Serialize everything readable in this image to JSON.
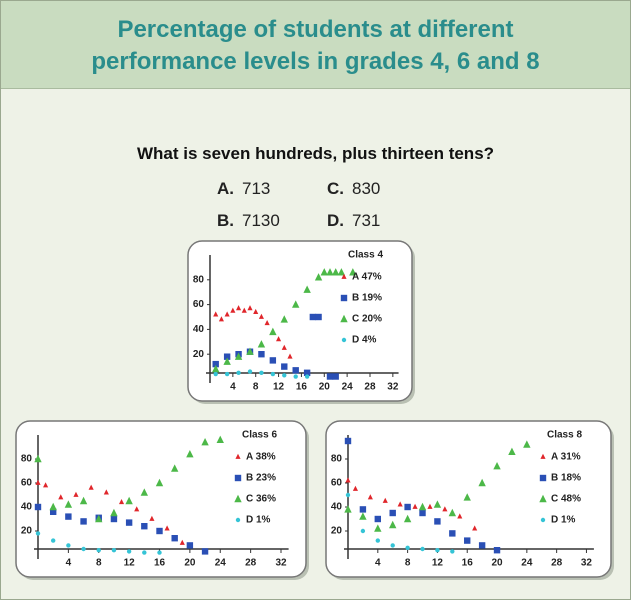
{
  "header": {
    "title_line1": "Percentage of students at different",
    "title_line2": "performance levels in grades 4, 6 and 8"
  },
  "question": "What is seven hundreds, plus thirteen tens?",
  "options": [
    {
      "letter": "A.",
      "text": "713"
    },
    {
      "letter": "C.",
      "text": "830"
    },
    {
      "letter": "B.",
      "text": "7130"
    },
    {
      "letter": "D.",
      "text": "731"
    }
  ],
  "chart_data": [
    {
      "type": "scatter",
      "title": "Class 4",
      "xlim": [
        0,
        33
      ],
      "ylim": [
        0,
        100
      ],
      "xticks": [
        4,
        8,
        12,
        16,
        20,
        24,
        28,
        32
      ],
      "yticks": [
        20,
        40,
        60,
        80
      ],
      "series": [
        {
          "name": "A 47%",
          "color": "#e0262b",
          "marker": "diamond",
          "x": [
            1,
            2,
            3,
            4,
            5,
            6,
            7,
            8,
            9,
            10,
            11,
            12,
            13,
            14
          ],
          "values": [
            52,
            48,
            52,
            55,
            57,
            55,
            57,
            54,
            50,
            45,
            38,
            32,
            25,
            18
          ]
        },
        {
          "name": "B 19%",
          "color": "#2a4fb5",
          "marker": "square",
          "x": [
            1,
            3,
            5,
            7,
            9,
            11,
            13,
            15,
            17,
            18,
            19,
            21,
            22
          ],
          "values": [
            12,
            18,
            20,
            22,
            20,
            15,
            10,
            7,
            5,
            50,
            50,
            2,
            2
          ]
        },
        {
          "name": "C 20%",
          "color": "#4cb848",
          "marker": "triangle",
          "x": [
            1,
            3,
            5,
            7,
            9,
            11,
            13,
            15,
            17,
            19,
            20,
            21,
            22,
            23,
            25
          ],
          "values": [
            8,
            14,
            18,
            22,
            28,
            38,
            48,
            60,
            72,
            82,
            86,
            86,
            86,
            86,
            86
          ]
        },
        {
          "name": "D  4%",
          "color": "#35c4d6",
          "marker": "circle",
          "x": [
            1,
            3,
            5,
            7,
            9,
            11,
            13,
            15,
            17
          ],
          "values": [
            4,
            4,
            5,
            6,
            5,
            4,
            3,
            2,
            2
          ]
        }
      ]
    },
    {
      "type": "scatter",
      "title": "Class 6",
      "xlim": [
        0,
        33
      ],
      "ylim": [
        0,
        100
      ],
      "xticks": [
        4,
        8,
        12,
        16,
        20,
        24,
        28,
        32
      ],
      "yticks": [
        20,
        40,
        60,
        80
      ],
      "series": [
        {
          "name": "A  38%",
          "color": "#e0262b",
          "marker": "diamond",
          "x": [
            0,
            1,
            3,
            5,
            7,
            9,
            11,
            13,
            15,
            17,
            19
          ],
          "values": [
            60,
            58,
            48,
            50,
            56,
            52,
            44,
            38,
            30,
            22,
            10
          ]
        },
        {
          "name": "B  23%",
          "color": "#2a4fb5",
          "marker": "square",
          "x": [
            0,
            2,
            4,
            6,
            8,
            10,
            12,
            14,
            16,
            18,
            20,
            22
          ],
          "values": [
            40,
            36,
            32,
            28,
            31,
            30,
            27,
            24,
            20,
            14,
            8,
            3
          ]
        },
        {
          "name": "C  36%",
          "color": "#4cb848",
          "marker": "triangle",
          "x": [
            0,
            2,
            4,
            6,
            8,
            10,
            12,
            14,
            16,
            18,
            20,
            22,
            24
          ],
          "values": [
            80,
            40,
            42,
            45,
            30,
            35,
            45,
            52,
            60,
            72,
            84,
            94,
            96
          ]
        },
        {
          "name": "D   1%",
          "color": "#35c4d6",
          "marker": "circle",
          "x": [
            0,
            2,
            4,
            6,
            8,
            10,
            12,
            14,
            16
          ],
          "values": [
            18,
            12,
            8,
            5,
            4,
            4,
            3,
            2,
            2
          ]
        }
      ]
    },
    {
      "type": "scatter",
      "title": "Class 8",
      "xlim": [
        0,
        33
      ],
      "ylim": [
        0,
        100
      ],
      "xticks": [
        4,
        8,
        12,
        16,
        20,
        24,
        28,
        32
      ],
      "yticks": [
        20,
        40,
        60,
        80
      ],
      "series": [
        {
          "name": "A  31%",
          "color": "#e0262b",
          "marker": "diamond",
          "x": [
            0,
            1,
            3,
            5,
            7,
            9,
            11,
            13,
            15,
            17
          ],
          "values": [
            62,
            55,
            48,
            45,
            42,
            40,
            40,
            38,
            32,
            22
          ]
        },
        {
          "name": "B  18%",
          "color": "#2a4fb5",
          "marker": "square",
          "x": [
            0,
            2,
            4,
            6,
            8,
            10,
            12,
            14,
            16,
            18,
            20
          ],
          "values": [
            95,
            38,
            30,
            35,
            40,
            35,
            28,
            18,
            12,
            8,
            4
          ]
        },
        {
          "name": "C  48%",
          "color": "#4cb848",
          "marker": "triangle",
          "x": [
            0,
            2,
            4,
            6,
            8,
            10,
            12,
            14,
            16,
            18,
            20,
            22,
            24
          ],
          "values": [
            38,
            32,
            22,
            25,
            30,
            40,
            42,
            35,
            48,
            60,
            74,
            86,
            92
          ]
        },
        {
          "name": "D   1%",
          "color": "#35c4d6",
          "marker": "circle",
          "x": [
            0,
            2,
            4,
            6,
            8,
            10,
            12,
            14
          ],
          "values": [
            50,
            20,
            12,
            8,
            6,
            5,
            4,
            3
          ]
        }
      ]
    }
  ]
}
